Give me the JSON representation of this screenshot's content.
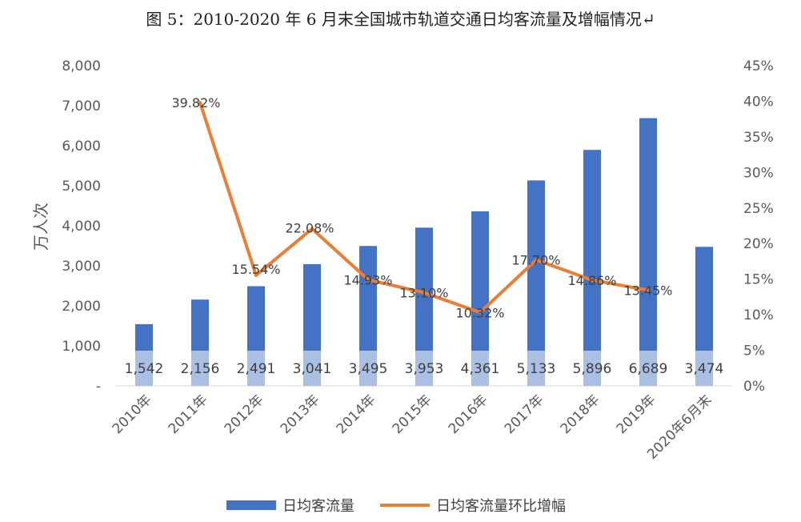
{
  "title": "图 5：2010-2020 年 6 月末全国城市轨道交通日均客流量及增幅情况↵",
  "chart_data": {
    "type": "bar",
    "title": "图 5：2010-2020 年 6 月末全国城市轨道交通日均客流量及增幅情况↵",
    "categories": [
      "2010年",
      "2011年",
      "2012年",
      "2013年",
      "2014年",
      "2015年",
      "2016年",
      "2017年",
      "2018年",
      "2019年",
      "2020年6月末"
    ],
    "ylabel": "万人次",
    "ylim": [
      0,
      8000
    ],
    "y2lim": [
      0,
      45
    ],
    "y_ticks": [
      "-",
      "1,000",
      "2,000",
      "3,000",
      "4,000",
      "5,000",
      "6,000",
      "7,000",
      "8,000"
    ],
    "y2_ticks": [
      "0%",
      "5%",
      "10%",
      "15%",
      "20%",
      "25%",
      "30%",
      "35%",
      "40%",
      "45%"
    ],
    "grid": false,
    "legend_position": "bottom",
    "series": [
      {
        "name": "日均客流量",
        "type": "bar",
        "axis": "left",
        "color": "#4472C4",
        "values": [
          1542,
          2156,
          2491,
          3041,
          3495,
          3953,
          4361,
          5133,
          5896,
          6689,
          3474
        ],
        "labels": [
          "1,542",
          "2,156",
          "2,491",
          "3,041",
          "3,495",
          "3,953",
          "4,361",
          "5,133",
          "5,896",
          "6,689",
          "3,474"
        ]
      },
      {
        "name": "日均客流量环比增幅",
        "type": "line",
        "axis": "right",
        "color": "#ED7D31",
        "values": [
          null,
          39.82,
          15.54,
          22.08,
          14.93,
          13.1,
          10.32,
          17.7,
          14.86,
          13.45,
          null
        ],
        "labels": [
          null,
          "39.82%",
          "15.54%",
          "22.08%",
          "14.93%",
          "13.10%",
          "10.32%",
          "17.70%",
          "14.86%",
          "13.45%",
          null
        ]
      }
    ]
  }
}
